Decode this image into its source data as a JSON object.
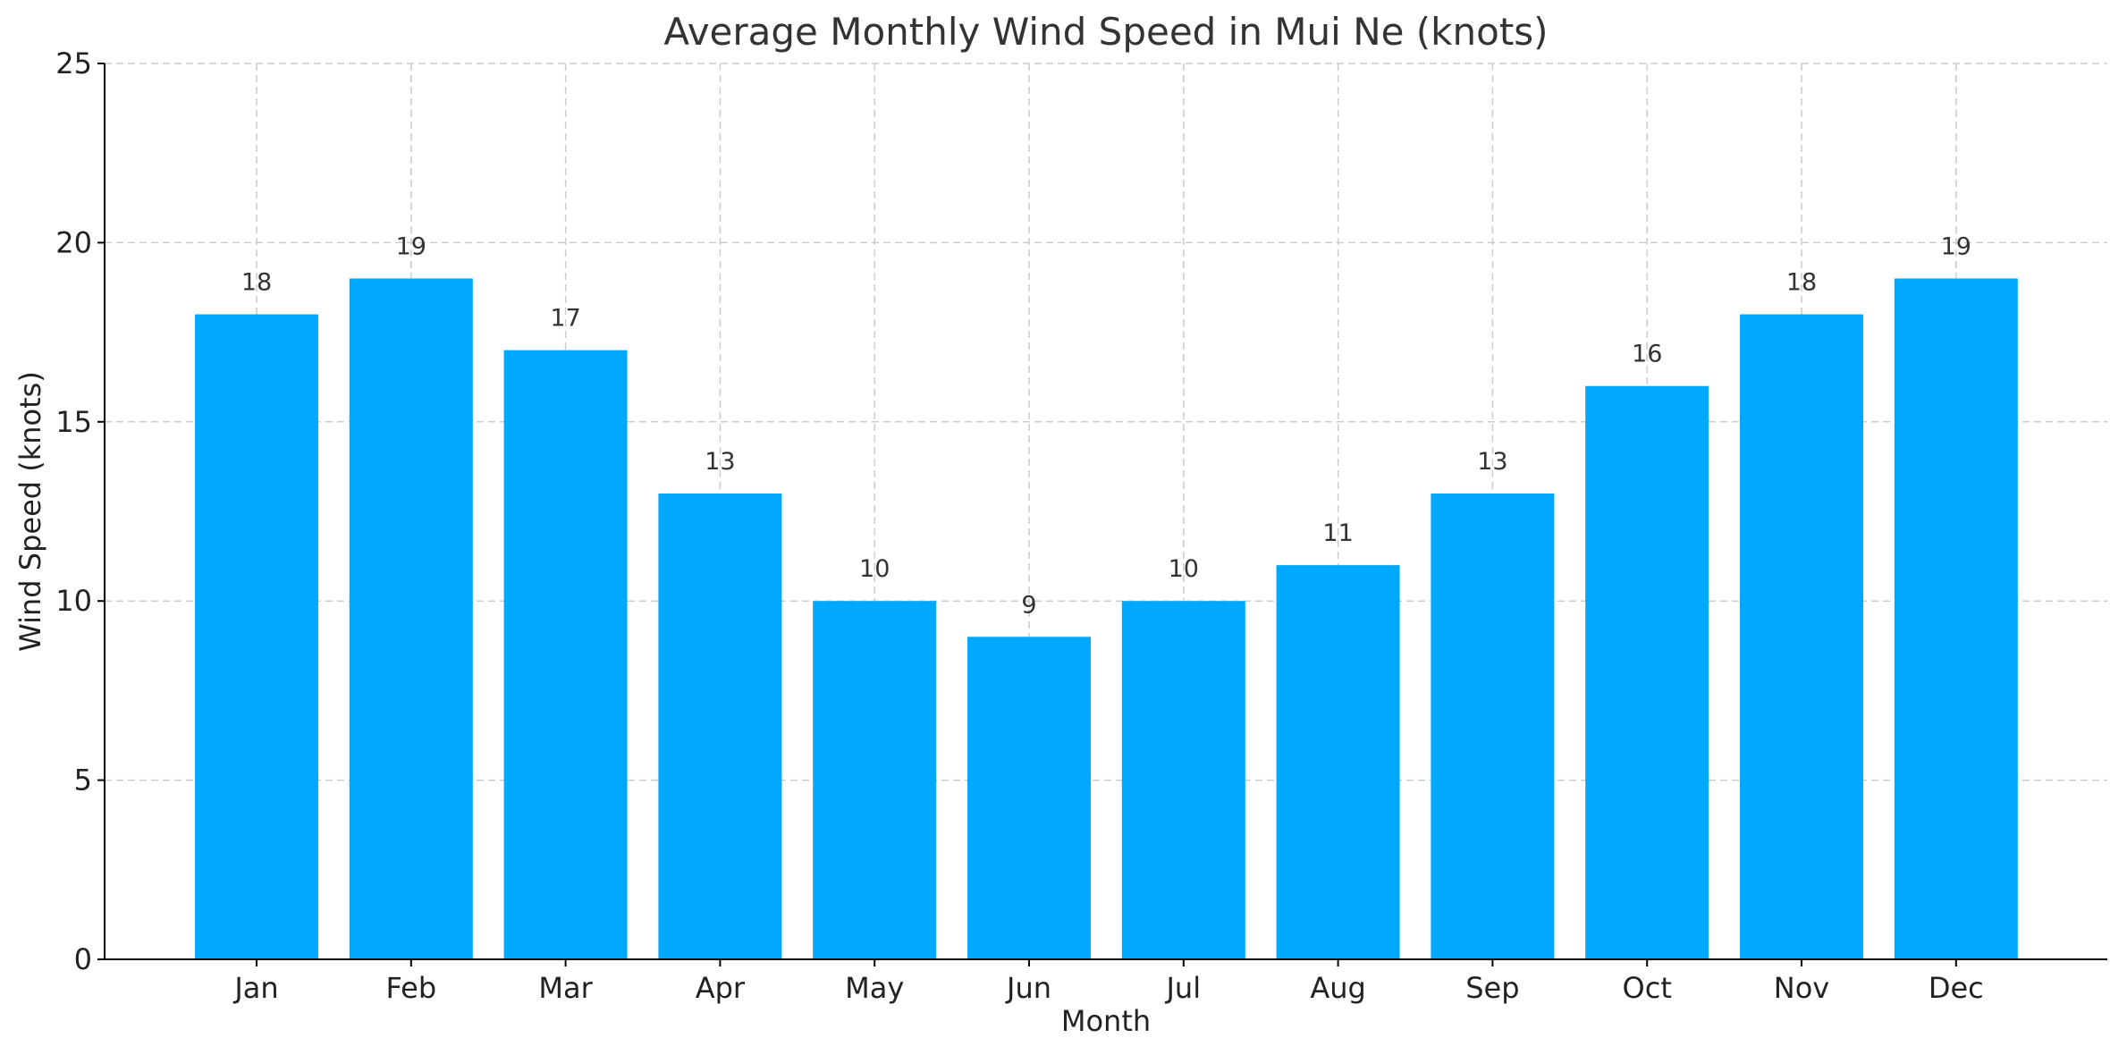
{
  "chart_data": {
    "type": "bar",
    "title": "Average Monthly Wind Speed in Mui Ne (knots)",
    "xlabel": "Month",
    "ylabel": "Wind Speed (knots)",
    "categories": [
      "Jan",
      "Feb",
      "Mar",
      "Apr",
      "May",
      "Jun",
      "Jul",
      "Aug",
      "Sep",
      "Oct",
      "Nov",
      "Dec"
    ],
    "values": [
      18,
      19,
      17,
      13,
      10,
      9,
      10,
      11,
      13,
      16,
      18,
      19
    ],
    "ylim": [
      0,
      25
    ],
    "yticks": [
      0,
      5,
      10,
      15,
      20,
      25
    ],
    "grid": true,
    "show_data_labels": true,
    "bar_color": "#00A8FF"
  }
}
